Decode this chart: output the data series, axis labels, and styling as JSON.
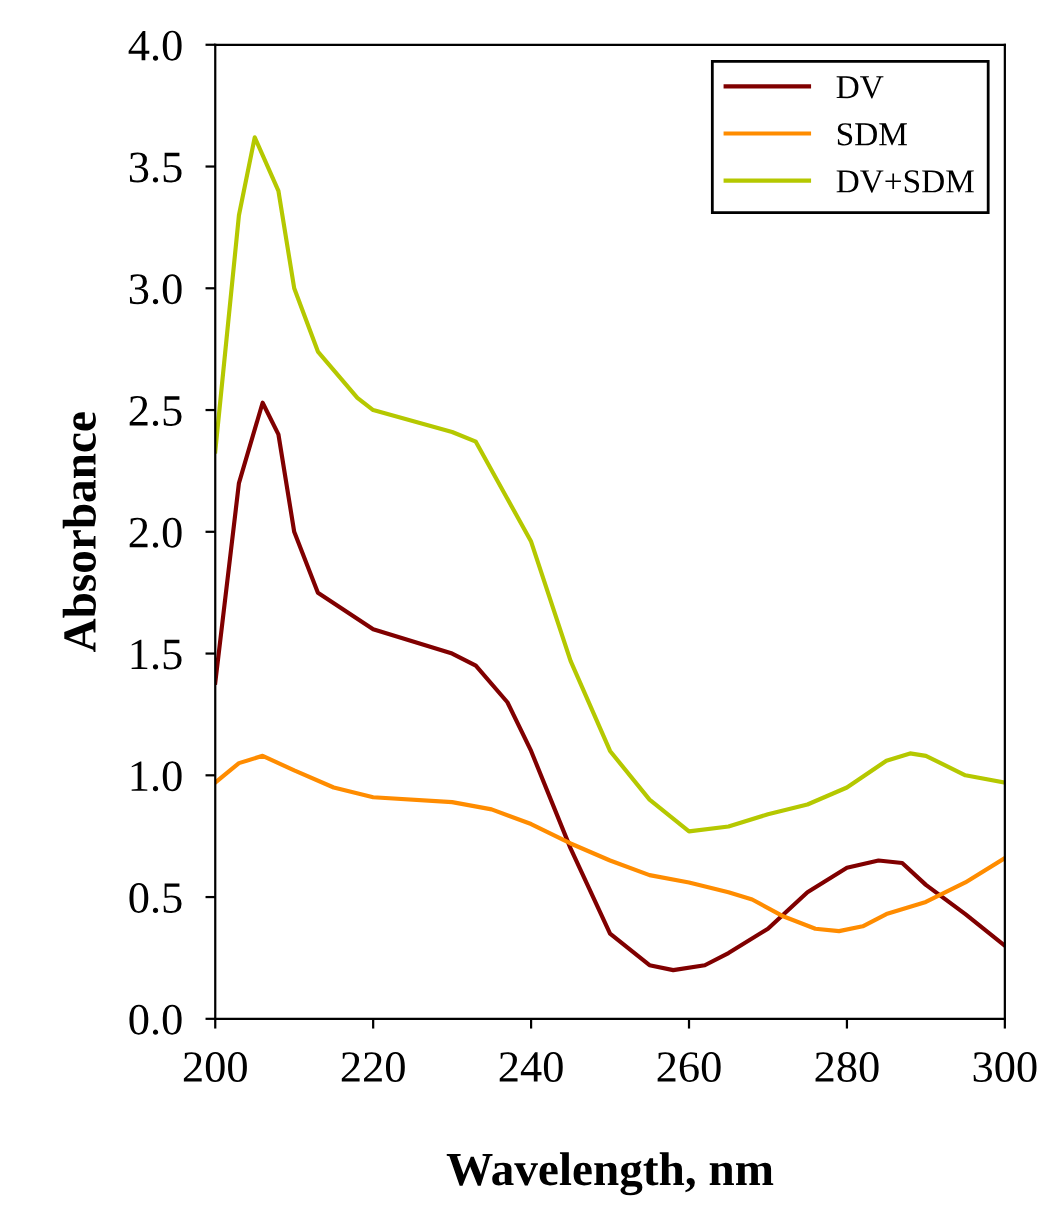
{
  "chart_data": {
    "type": "line",
    "xlabel": "Wavelength, nm",
    "ylabel": "Absorbance",
    "xlim": [
      200,
      300
    ],
    "xticks": [
      200,
      220,
      240,
      260,
      280,
      300
    ],
    "ylim": [
      0,
      4
    ],
    "yticks": [
      {
        "value": 0,
        "label": "0.0"
      },
      {
        "value": 0.5,
        "label": "0.5"
      },
      {
        "value": 1,
        "label": "1.0"
      },
      {
        "value": 1.5,
        "label": "1.5"
      },
      {
        "value": 2,
        "label": "2.0"
      },
      {
        "value": 2.5,
        "label": "2.5"
      },
      {
        "value": 3,
        "label": "3.0"
      },
      {
        "value": 3.5,
        "label": "3.5"
      },
      {
        "value": 4,
        "label": "4.0"
      }
    ],
    "grid": false,
    "legend": "top right",
    "marker": "none",
    "line_style": "solid",
    "series": [
      {
        "name": "DV",
        "color": "#800000",
        "x": [
          200,
          203,
          206,
          208,
          210,
          213,
          220,
          230,
          233,
          237,
          240,
          245,
          250,
          255,
          258,
          262,
          265,
          270,
          275,
          280,
          284,
          287,
          290,
          295,
          300
        ],
        "values": [
          1.38,
          2.2,
          2.53,
          2.4,
          2.0,
          1.75,
          1.6,
          1.5,
          1.45,
          1.3,
          1.1,
          0.7,
          0.35,
          0.22,
          0.2,
          0.22,
          0.27,
          0.37,
          0.52,
          0.62,
          0.65,
          0.64,
          0.55,
          0.43,
          0.3
        ]
      },
      {
        "name": "SDM",
        "color": "#ff8c00",
        "x": [
          200,
          203,
          206,
          210,
          215,
          220,
          230,
          235,
          240,
          245,
          250,
          255,
          260,
          265,
          268,
          272,
          276,
          279,
          282,
          285,
          290,
          295,
          300
        ],
        "values": [
          0.97,
          1.05,
          1.08,
          1.02,
          0.95,
          0.91,
          0.89,
          0.86,
          0.8,
          0.72,
          0.65,
          0.59,
          0.56,
          0.52,
          0.49,
          0.42,
          0.37,
          0.36,
          0.38,
          0.43,
          0.48,
          0.56,
          0.66
        ]
      },
      {
        "name": "DV+SDM",
        "color": "#b5c800",
        "x": [
          200,
          203,
          205,
          208,
          210,
          213,
          218,
          220,
          230,
          233,
          240,
          245,
          250,
          255,
          260,
          265,
          270,
          275,
          280,
          285,
          288,
          290,
          295,
          300
        ],
        "values": [
          2.33,
          3.3,
          3.62,
          3.4,
          3.0,
          2.74,
          2.55,
          2.5,
          2.41,
          2.37,
          1.96,
          1.47,
          1.1,
          0.9,
          0.77,
          0.79,
          0.84,
          0.88,
          0.95,
          1.06,
          1.09,
          1.08,
          1.0,
          0.97
        ]
      }
    ]
  }
}
